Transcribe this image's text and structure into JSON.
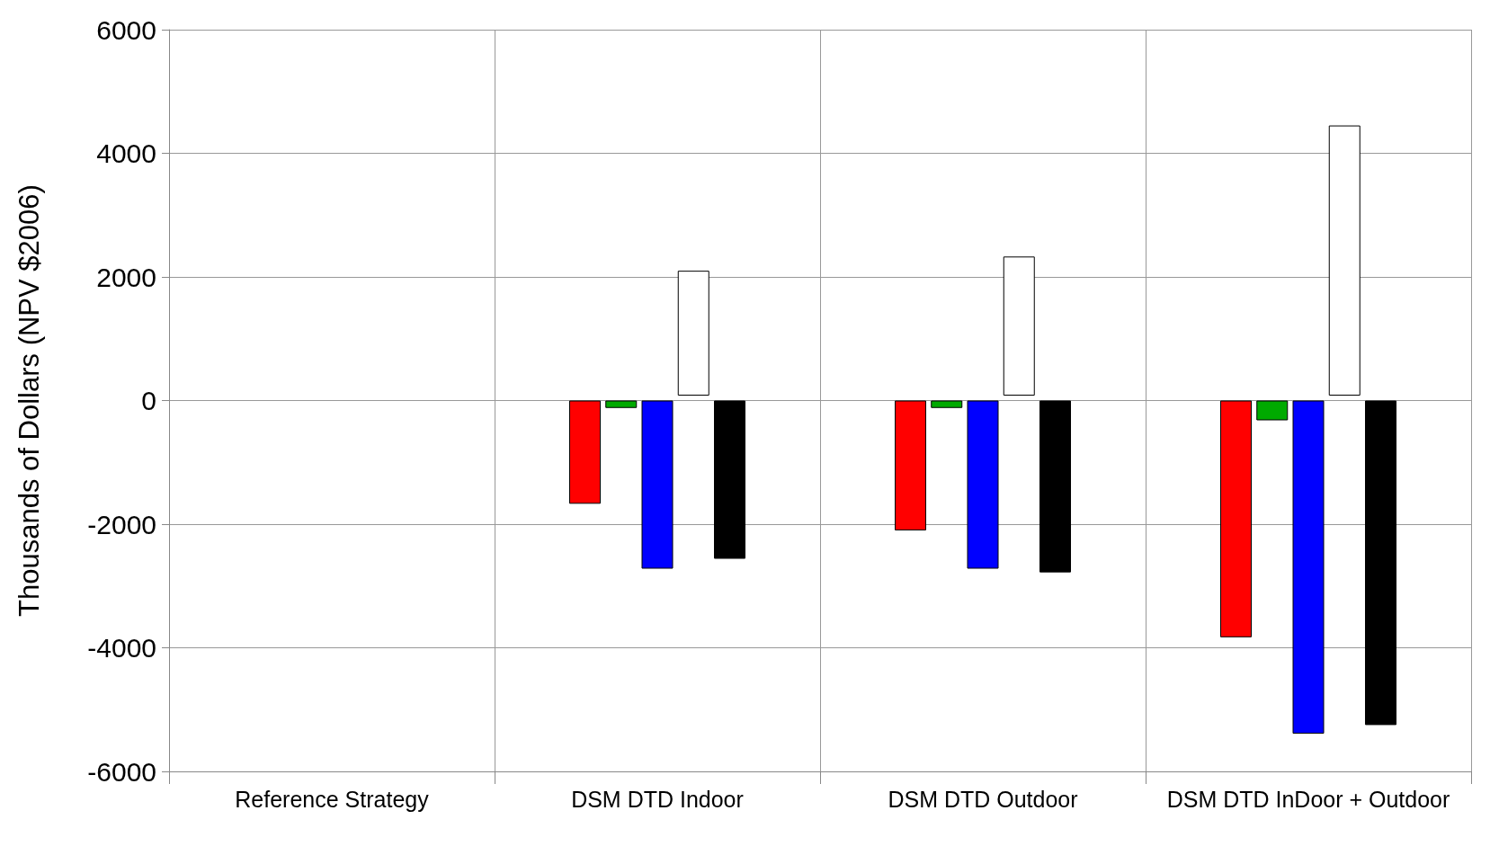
{
  "chart_data": {
    "type": "bar",
    "ylabel": "Thousands of Dollars (NPV $2006)",
    "categories": [
      "Reference Strategy",
      "DSM DTD Indoor",
      "DSM DTD Outdoor",
      "DSM DTD InDoor + Outdoor"
    ],
    "series": [
      {
        "color": "#ff0000",
        "values": [
          null,
          -1670,
          -2100,
          -3830
        ]
      },
      {
        "color": "#00aa00",
        "values": [
          null,
          -120,
          -120,
          -320
        ]
      },
      {
        "color": "#0000ff",
        "values": [
          null,
          -2720,
          -2720,
          -5390
        ]
      },
      {
        "color": "#ffffff",
        "values": [
          null,
          2020,
          2250,
          4370
        ],
        "base": [
          null,
          80,
          80,
          80
        ]
      },
      {
        "color": "#000000",
        "values": [
          null,
          -2560,
          -2780,
          -5250
        ]
      }
    ],
    "ylim": [
      -6000,
      6000
    ],
    "yticks": [
      -6000,
      -4000,
      -2000,
      0,
      2000,
      4000,
      6000
    ],
    "grid": true
  }
}
